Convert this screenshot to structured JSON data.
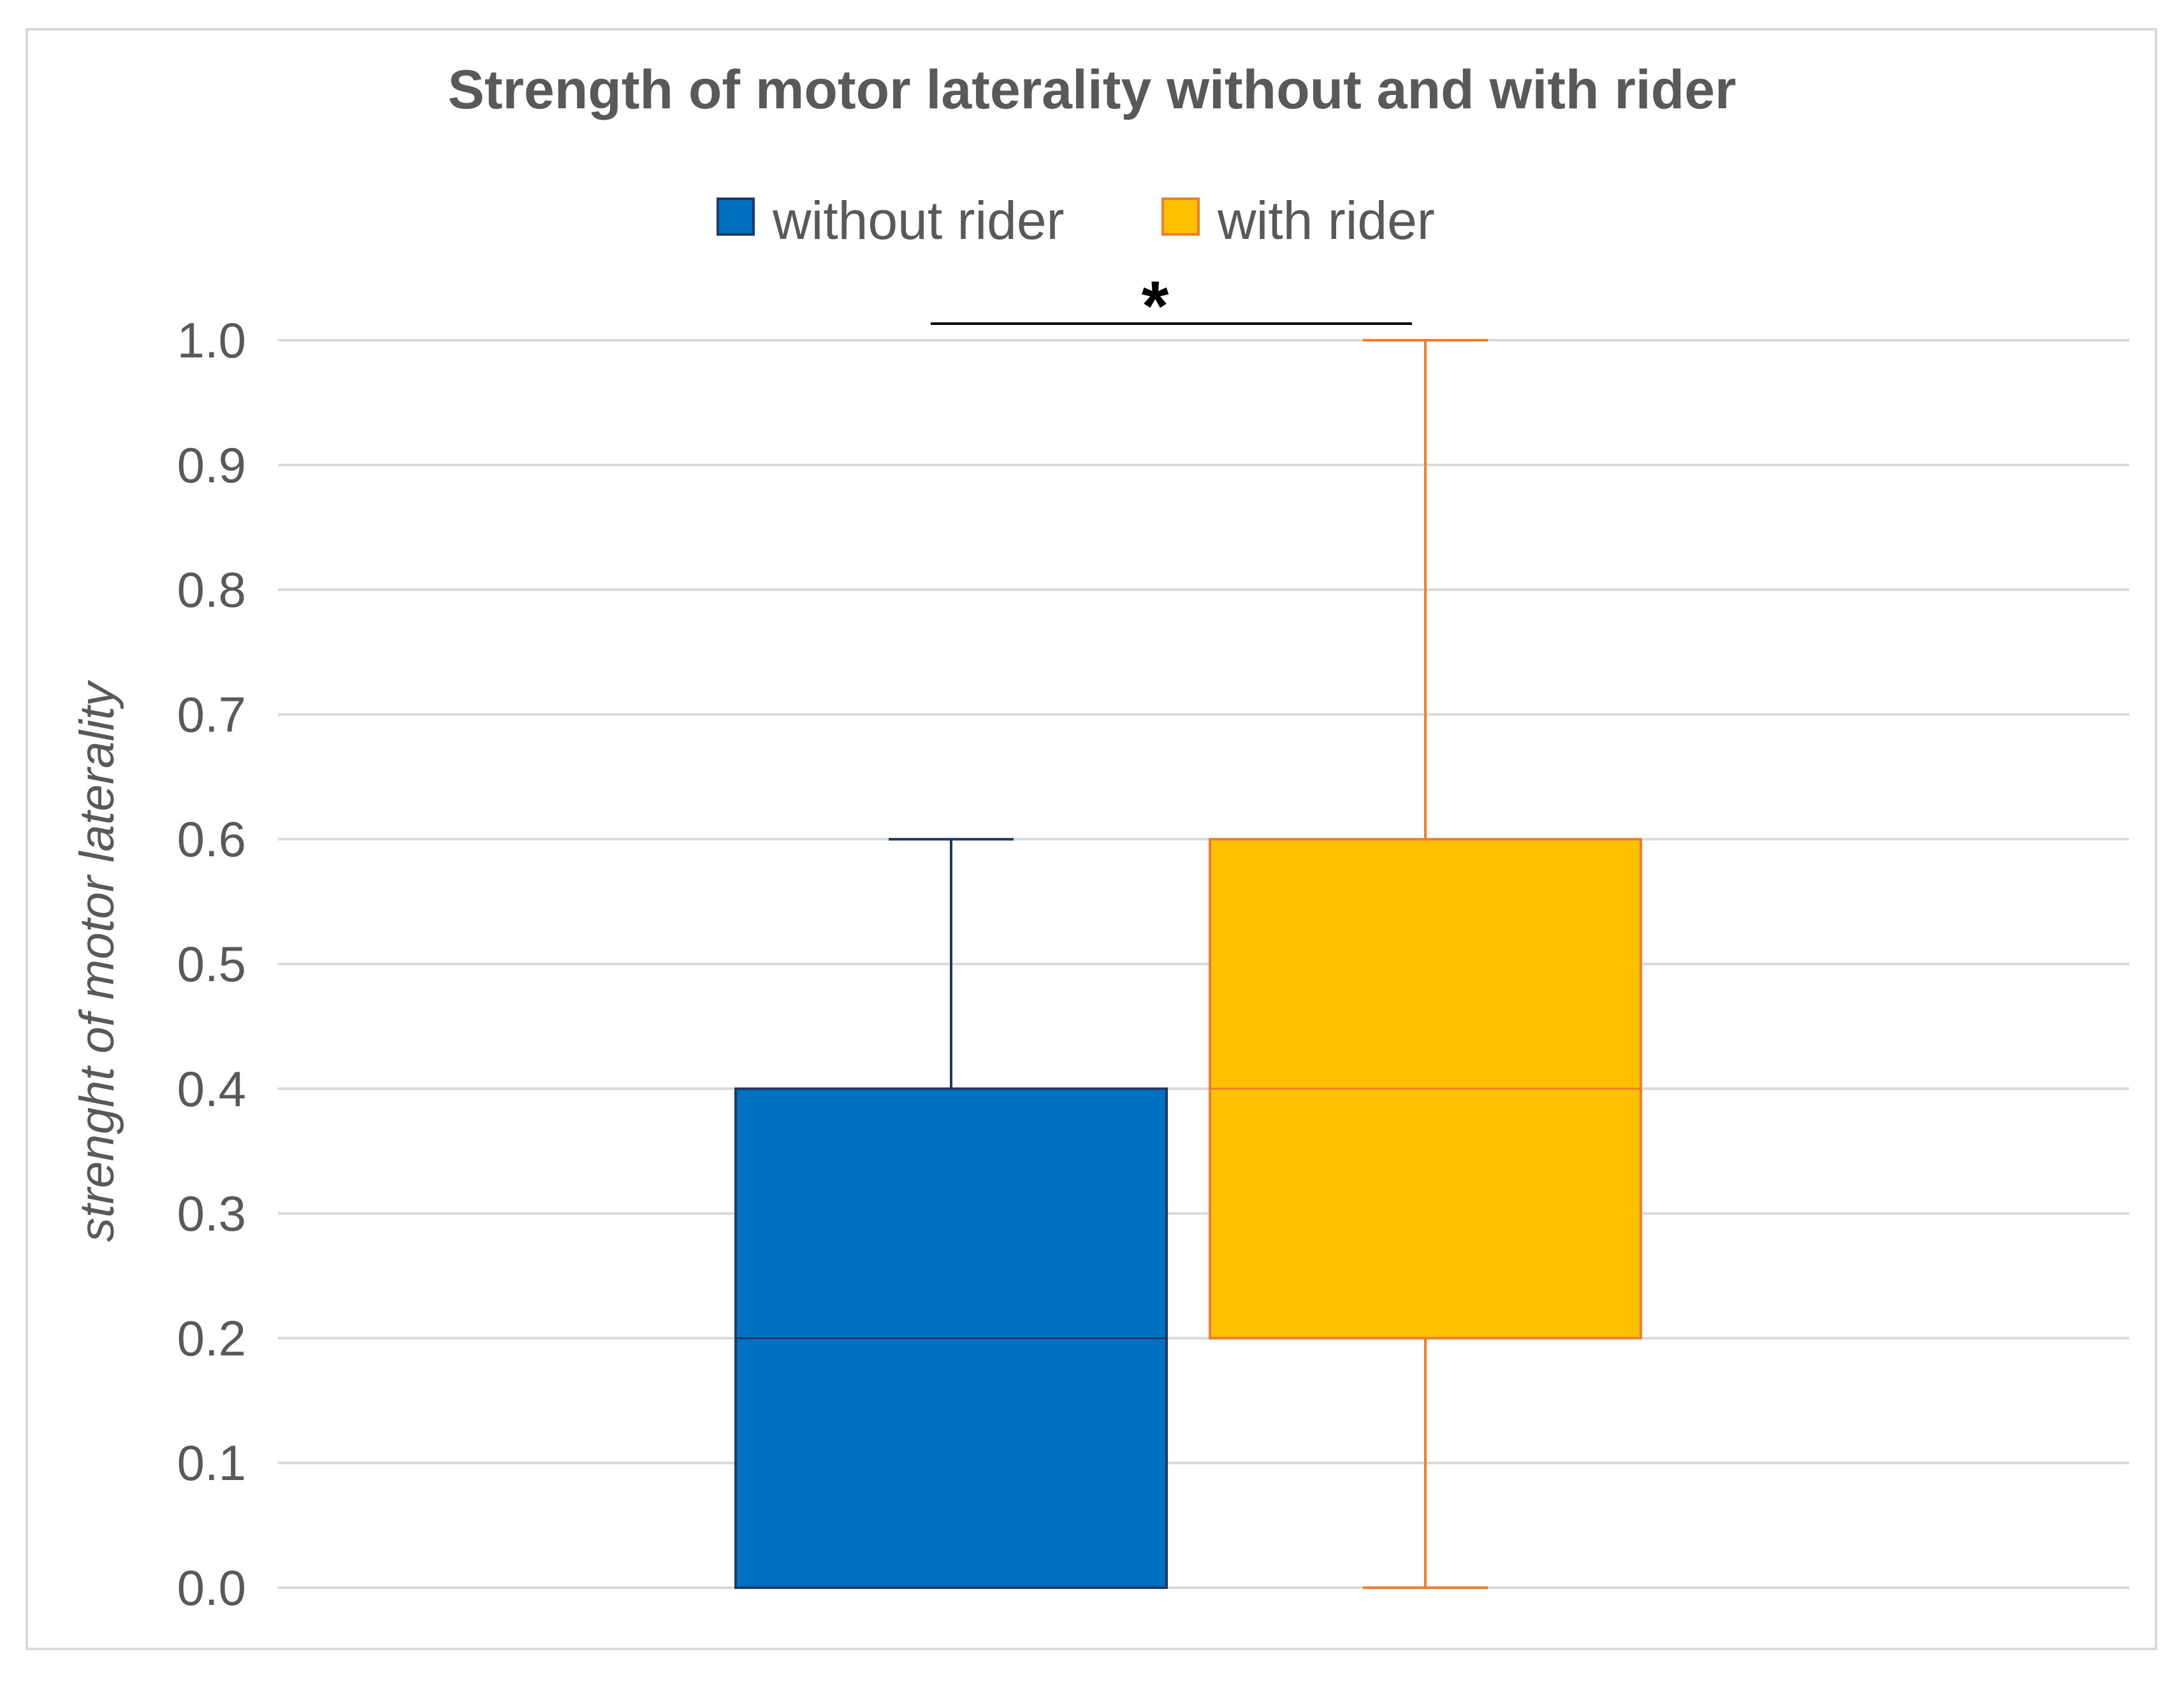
{
  "chart_data": {
    "type": "box",
    "title": "Strength of motor laterality without and with rider",
    "ylabel": "strenght of motor laterality",
    "xlabel": "",
    "ylim": [
      0,
      1
    ],
    "yticks": [
      "0.0",
      "0.1",
      "0.2",
      "0.3",
      "0.4",
      "0.5",
      "0.6",
      "0.7",
      "0.8",
      "0.9",
      "1.0"
    ],
    "grid": true,
    "legend_position": "top",
    "significance": {
      "label": "*",
      "between": [
        "without rider",
        "with rider"
      ]
    },
    "series": [
      {
        "name": "without rider",
        "color": "#0070C0",
        "edge_color": "#1F3864",
        "min": 0.0,
        "q1": 0.0,
        "median": 0.2,
        "q3": 0.4,
        "max": 0.6
      },
      {
        "name": "with rider",
        "color": "#FFC000",
        "edge_color": "#ED7D31",
        "min": 0.0,
        "q1": 0.2,
        "median": 0.4,
        "q3": 0.6,
        "max": 1.0
      }
    ]
  }
}
